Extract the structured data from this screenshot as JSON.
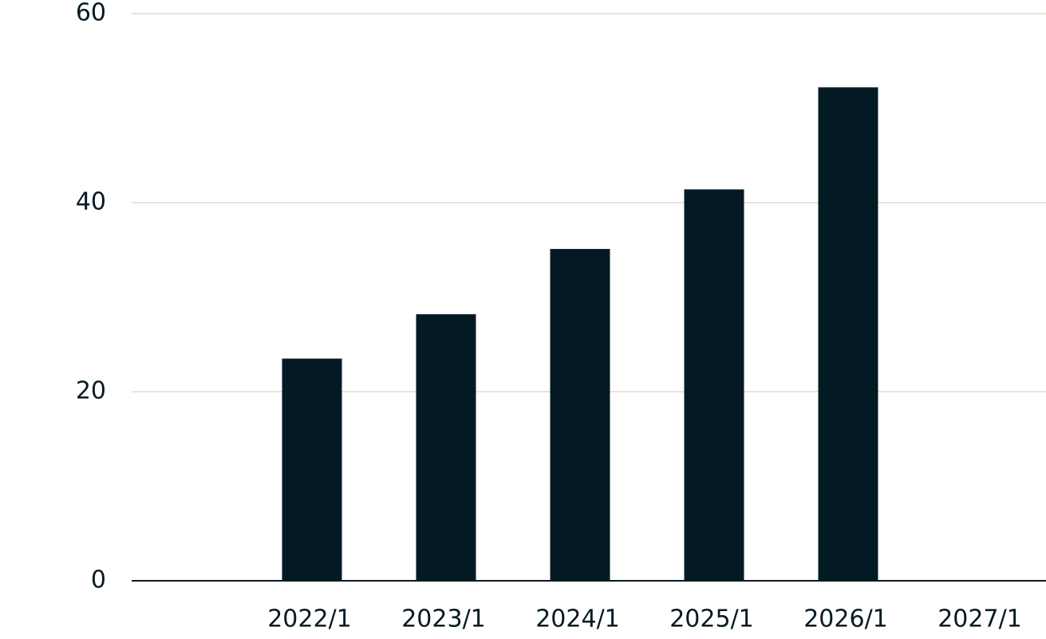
{
  "chart_data": {
    "type": "bar",
    "categories": [
      null,
      "2022/1",
      "2023/1",
      "2024/1",
      "2025/1",
      "2026/1",
      "2027/1"
    ],
    "values": [
      null,
      23.5,
      28.2,
      35.1,
      41.4,
      52.2,
      null
    ],
    "color": "#031a24",
    "ylim": [
      0,
      60
    ],
    "yticks": [
      0,
      20,
      40,
      60
    ],
    "grid": true
  }
}
